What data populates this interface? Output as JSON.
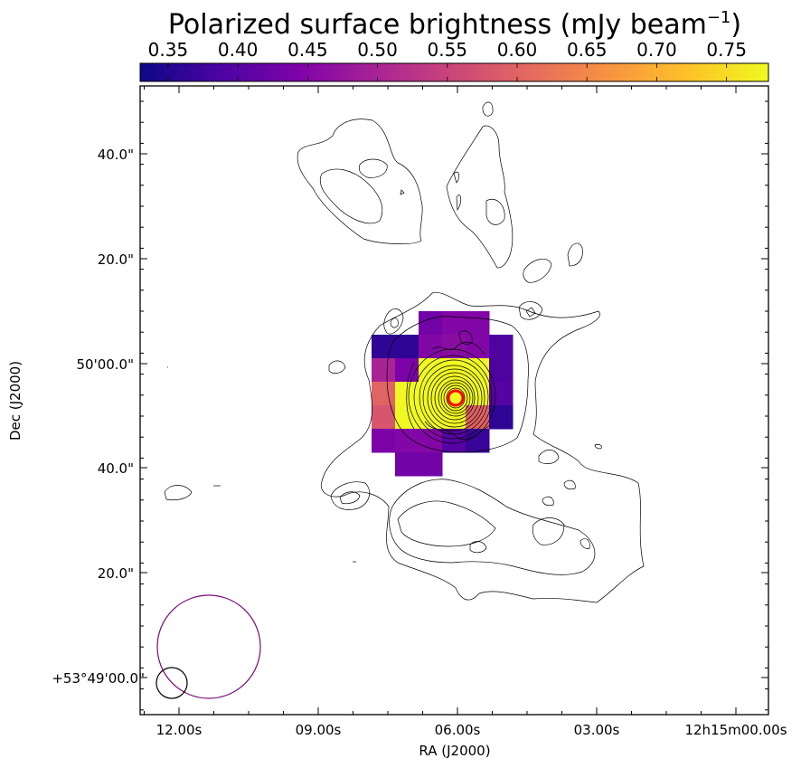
{
  "chart_data": {
    "type": "heatmap",
    "colorbar": {
      "title_main": "Polarized surface brightness (mJy beam",
      "title_exponent": "−1",
      "title_close": ")",
      "ticks": [
        "0.35",
        "0.40",
        "0.45",
        "0.50",
        "0.55",
        "0.60",
        "0.65",
        "0.70",
        "0.75"
      ],
      "range": [
        0.33,
        0.78
      ],
      "colormap": "plasma"
    },
    "xlabel": "RA (J2000)",
    "ylabel": "Dec (J2000)",
    "xticks": [
      "12.00s",
      "09.00s",
      "06.00s",
      "03.00s",
      "12h15m00.00s"
    ],
    "yticks": [
      "40.0\"",
      "20.0\"",
      "50'00.0\"",
      "40.0\"",
      "20.0\"",
      "+53°49'00.0\""
    ],
    "grid": false,
    "pixel_values": [
      [
        null,
        null,
        0.43,
        0.45,
        0.45,
        null,
        null
      ],
      [
        0.36,
        0.36,
        0.45,
        0.46,
        0.45,
        0.39,
        null
      ],
      [
        0.5,
        0.44,
        0.78,
        0.78,
        0.78,
        0.39,
        null
      ],
      [
        0.6,
        0.78,
        0.78,
        0.78,
        0.78,
        0.4,
        null
      ],
      [
        0.58,
        0.78,
        0.78,
        0.78,
        0.6,
        0.36,
        null
      ],
      [
        0.44,
        0.45,
        0.45,
        0.4,
        0.37,
        null,
        null
      ],
      [
        null,
        0.43,
        0.43,
        null,
        null,
        null,
        null
      ]
    ],
    "beams": [
      {
        "name": "large-beam",
        "color": "#7a0a7a"
      },
      {
        "name": "small-beam",
        "color": "#000000"
      }
    ],
    "source_marker_color": "#ff0000",
    "contour_color": "#000000"
  }
}
